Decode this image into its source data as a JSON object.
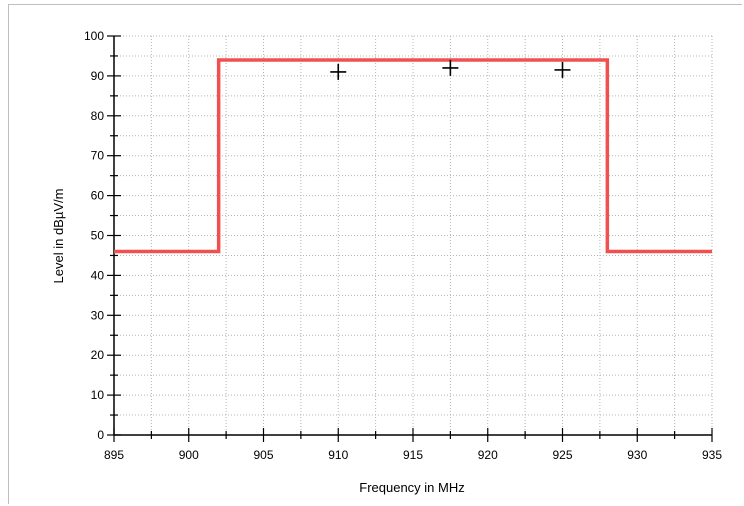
{
  "chart_data": {
    "type": "line",
    "title": "",
    "xlabel": "Frequency in MHz",
    "ylabel": "Level in dBµV/m",
    "xlim": [
      895,
      935
    ],
    "ylim": [
      0,
      100
    ],
    "x_ticks": [
      895,
      900,
      905,
      910,
      915,
      920,
      925,
      930,
      935
    ],
    "y_ticks": [
      0,
      10,
      20,
      30,
      40,
      50,
      60,
      70,
      80,
      90,
      100
    ],
    "grid": true,
    "limit_line": {
      "color": "#f05050",
      "points": [
        [
          895,
          46
        ],
        [
          902,
          46
        ],
        [
          902,
          94
        ],
        [
          928,
          94
        ],
        [
          928,
          46
        ],
        [
          935,
          46
        ]
      ]
    },
    "measurements": {
      "marker": "plus",
      "color": "#000000",
      "points": [
        [
          910,
          91
        ],
        [
          917.5,
          92
        ],
        [
          925,
          91.5
        ]
      ]
    }
  }
}
